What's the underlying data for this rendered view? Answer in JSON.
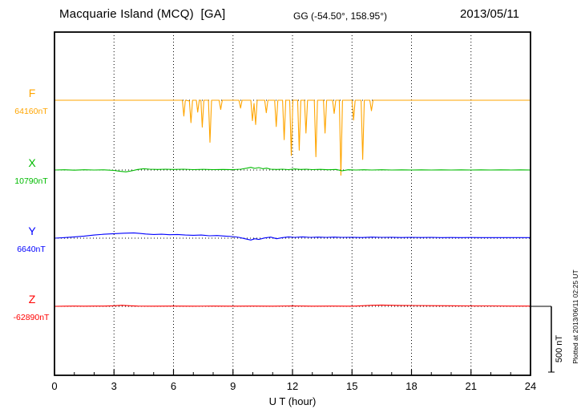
{
  "chart_data": {
    "type": "line",
    "title": "Macquarie Island (MCQ)  [GA]",
    "coords": "GG (-54.50°, 158.95°)",
    "date": "2013/05/11",
    "xlabel": "U T (hour)",
    "x_range": [
      0,
      24
    ],
    "x_ticks": [
      0,
      3,
      6,
      9,
      12,
      15,
      18,
      21,
      24
    ],
    "grid": "vertical dotted gridlines every 3 hours; dotted horizontal baseline per trace",
    "legend_position": "left margin, one colored label per trace",
    "values_unit": "nT deviation from each trace baseline",
    "scale_bar": {
      "label": "500 nT",
      "span_nT": 500
    },
    "plotted_note": "Plotted at 2013/06/11 02:25 UT",
    "series": [
      {
        "name": "F",
        "baseline_label": "64160nT",
        "baseline_nT": 64160,
        "color": "#FFA500",
        "points": [
          [
            0,
            0
          ],
          [
            1,
            0
          ],
          [
            2,
            0
          ],
          [
            3,
            0
          ],
          [
            4,
            0
          ],
          [
            5,
            0
          ],
          [
            6,
            0
          ],
          [
            6.3,
            0
          ],
          [
            6.45,
            0
          ],
          [
            6.52,
            -120
          ],
          [
            6.6,
            0
          ],
          [
            6.8,
            -5
          ],
          [
            6.88,
            -170
          ],
          [
            6.96,
            0
          ],
          [
            7.15,
            0
          ],
          [
            7.22,
            -90
          ],
          [
            7.3,
            0
          ],
          [
            7.38,
            0
          ],
          [
            7.45,
            -205
          ],
          [
            7.53,
            0
          ],
          [
            7.76,
            0
          ],
          [
            7.84,
            -320
          ],
          [
            7.92,
            0
          ],
          [
            8.3,
            0
          ],
          [
            8.38,
            -70
          ],
          [
            8.46,
            0
          ],
          [
            9.3,
            0
          ],
          [
            9.38,
            -60
          ],
          [
            9.46,
            0
          ],
          [
            9.9,
            0
          ],
          [
            9.98,
            -155
          ],
          [
            10.06,
            -25
          ],
          [
            10.14,
            -185
          ],
          [
            10.22,
            0
          ],
          [
            10.6,
            0
          ],
          [
            10.68,
            -95
          ],
          [
            10.76,
            0
          ],
          [
            11.1,
            0
          ],
          [
            11.18,
            -200
          ],
          [
            11.26,
            0
          ],
          [
            11.5,
            0
          ],
          [
            11.58,
            -300
          ],
          [
            11.66,
            0
          ],
          [
            11.86,
            0
          ],
          [
            11.94,
            -420
          ],
          [
            12.02,
            0
          ],
          [
            12.26,
            0
          ],
          [
            12.34,
            -380
          ],
          [
            12.42,
            0
          ],
          [
            12.6,
            0
          ],
          [
            12.68,
            -250
          ],
          [
            12.76,
            0
          ],
          [
            13.1,
            0
          ],
          [
            13.18,
            -430
          ],
          [
            13.26,
            0
          ],
          [
            13.56,
            0
          ],
          [
            13.64,
            -250
          ],
          [
            13.72,
            0
          ],
          [
            14.02,
            0
          ],
          [
            14.1,
            -100
          ],
          [
            14.18,
            0
          ],
          [
            14.36,
            0
          ],
          [
            14.44,
            -570
          ],
          [
            14.52,
            0
          ],
          [
            15,
            0
          ],
          [
            15.08,
            -150
          ],
          [
            15.16,
            0
          ],
          [
            15.46,
            0
          ],
          [
            15.54,
            -450
          ],
          [
            15.62,
            0
          ],
          [
            15.9,
            0
          ],
          [
            15.98,
            -80
          ],
          [
            16.06,
            0
          ],
          [
            17,
            0
          ],
          [
            18,
            0
          ],
          [
            19,
            0
          ],
          [
            20,
            0
          ],
          [
            21,
            0
          ],
          [
            22,
            0
          ],
          [
            23,
            0
          ],
          [
            24,
            0
          ]
        ]
      },
      {
        "name": "X",
        "baseline_label": "10790nT",
        "baseline_nT": 10790,
        "color": "#00BB00",
        "points": [
          [
            0,
            0
          ],
          [
            0.5,
            2
          ],
          [
            1,
            -1
          ],
          [
            1.5,
            2
          ],
          [
            2,
            0
          ],
          [
            2.5,
            1
          ],
          [
            3,
            -3
          ],
          [
            3.3,
            -10
          ],
          [
            3.6,
            -14
          ],
          [
            3.9,
            -6
          ],
          [
            4.2,
            4
          ],
          [
            4.5,
            10
          ],
          [
            4.8,
            6
          ],
          [
            5.2,
            4
          ],
          [
            5.6,
            6
          ],
          [
            6,
            4
          ],
          [
            6.5,
            6
          ],
          [
            7,
            3
          ],
          [
            7.5,
            5
          ],
          [
            8,
            3
          ],
          [
            8.5,
            4
          ],
          [
            9,
            3
          ],
          [
            9.4,
            6
          ],
          [
            9.7,
            14
          ],
          [
            9.9,
            20
          ],
          [
            10.1,
            12
          ],
          [
            10.3,
            18
          ],
          [
            10.5,
            10
          ],
          [
            10.7,
            14
          ],
          [
            10.9,
            6
          ],
          [
            11.2,
            4
          ],
          [
            11.5,
            6
          ],
          [
            11.8,
            3
          ],
          [
            12.1,
            8
          ],
          [
            12.4,
            4
          ],
          [
            12.7,
            6
          ],
          [
            13,
            3
          ],
          [
            13.4,
            5
          ],
          [
            13.8,
            2
          ],
          [
            14.2,
            4
          ],
          [
            14.5,
            -6
          ],
          [
            14.8,
            2
          ],
          [
            15.2,
            0
          ],
          [
            15.6,
            2
          ],
          [
            16,
            0
          ],
          [
            16.5,
            2
          ],
          [
            17,
            0
          ],
          [
            17.5,
            1
          ],
          [
            18,
            0
          ],
          [
            18.5,
            1
          ],
          [
            19,
            0
          ],
          [
            19.5,
            1
          ],
          [
            20,
            0
          ],
          [
            20.5,
            1
          ],
          [
            21,
            0
          ],
          [
            21.5,
            1
          ],
          [
            22,
            0
          ],
          [
            22.5,
            1
          ],
          [
            23,
            0
          ],
          [
            23.5,
            1
          ],
          [
            24,
            0
          ]
        ]
      },
      {
        "name": "Y",
        "baseline_label": "6640nT",
        "baseline_nT": 6640,
        "color": "#0000FF",
        "points": [
          [
            0,
            0
          ],
          [
            0.5,
            4
          ],
          [
            1,
            10
          ],
          [
            1.5,
            16
          ],
          [
            2,
            24
          ],
          [
            2.5,
            30
          ],
          [
            3,
            34
          ],
          [
            3.5,
            38
          ],
          [
            4,
            40
          ],
          [
            4.3,
            36
          ],
          [
            4.6,
            32
          ],
          [
            5,
            28
          ],
          [
            5.4,
            30
          ],
          [
            5.8,
            26
          ],
          [
            6.2,
            28
          ],
          [
            6.6,
            24
          ],
          [
            7,
            22
          ],
          [
            7.4,
            24
          ],
          [
            7.8,
            18
          ],
          [
            8.2,
            20
          ],
          [
            8.6,
            16
          ],
          [
            9,
            12
          ],
          [
            9.3,
            6
          ],
          [
            9.6,
            -4
          ],
          [
            9.9,
            -14
          ],
          [
            10.1,
            -4
          ],
          [
            10.3,
            -10
          ],
          [
            10.6,
            2
          ],
          [
            10.9,
            8
          ],
          [
            11.2,
            -4
          ],
          [
            11.5,
            4
          ],
          [
            11.8,
            10
          ],
          [
            12.1,
            6
          ],
          [
            12.5,
            10
          ],
          [
            12.9,
            6
          ],
          [
            13.3,
            8
          ],
          [
            13.7,
            6
          ],
          [
            14.1,
            8
          ],
          [
            14.5,
            6
          ],
          [
            15,
            7
          ],
          [
            15.5,
            5
          ],
          [
            16,
            8
          ],
          [
            16.5,
            6
          ],
          [
            17,
            7
          ],
          [
            17.5,
            5
          ],
          [
            18,
            6
          ],
          [
            18.5,
            5
          ],
          [
            19,
            6
          ],
          [
            19.5,
            4
          ],
          [
            20,
            5
          ],
          [
            20.5,
            4
          ],
          [
            21,
            5
          ],
          [
            21.5,
            4
          ],
          [
            22,
            4
          ],
          [
            22.5,
            4
          ],
          [
            23,
            4
          ],
          [
            23.5,
            4
          ],
          [
            24,
            4
          ]
        ]
      },
      {
        "name": "Z",
        "baseline_label": "-62890nT",
        "baseline_nT": -62890,
        "color": "#FF0000",
        "points": [
          [
            0,
            0
          ],
          [
            0.5,
            1
          ],
          [
            1,
            2
          ],
          [
            1.5,
            1
          ],
          [
            2,
            2
          ],
          [
            2.5,
            2
          ],
          [
            3,
            4
          ],
          [
            3.4,
            8
          ],
          [
            3.8,
            4
          ],
          [
            4.2,
            2
          ],
          [
            5,
            1
          ],
          [
            6,
            2
          ],
          [
            7,
            1
          ],
          [
            8,
            2
          ],
          [
            9,
            1
          ],
          [
            10,
            2
          ],
          [
            11,
            1
          ],
          [
            12,
            3
          ],
          [
            13,
            1
          ],
          [
            14,
            2
          ],
          [
            15,
            1
          ],
          [
            15.5,
            4
          ],
          [
            16,
            8
          ],
          [
            16.5,
            10
          ],
          [
            17,
            8
          ],
          [
            17.5,
            7
          ],
          [
            18,
            6
          ],
          [
            19,
            5
          ],
          [
            20,
            4
          ],
          [
            21,
            3
          ],
          [
            22,
            3
          ],
          [
            23,
            2
          ],
          [
            24,
            2
          ]
        ]
      }
    ]
  }
}
